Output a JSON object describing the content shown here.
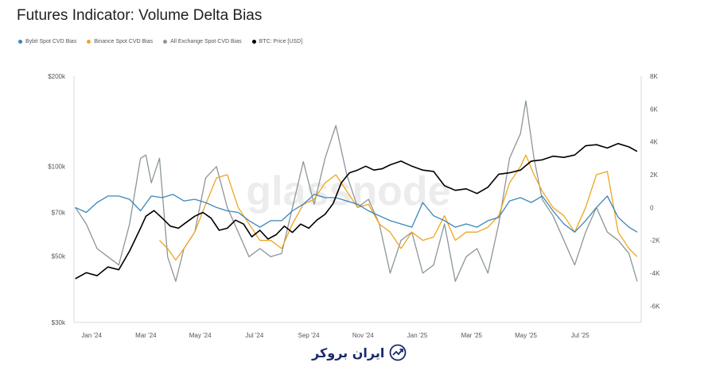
{
  "title": "Futures Indicator: Volume Delta Bias",
  "legend": [
    {
      "label": "Bybit Spot CVD Bias",
      "color": "#3b86b8"
    },
    {
      "label": "Binance Spot CVD Bias",
      "color": "#f0a51f"
    },
    {
      "label": "All Exchange Spot CVD Bias",
      "color": "#8c9699"
    },
    {
      "label": "BTC: Price [USD]",
      "color": "#000000"
    }
  ],
  "watermark": "glassnode",
  "logo_text": "ایران بروکر",
  "chart_data": {
    "type": "line",
    "title": "Futures Indicator: Volume Delta Bias",
    "x_ticks": [
      "Jan '24",
      "Mar '24",
      "May '24",
      "Jul '24",
      "Sep '24",
      "Nov '24",
      "Jan '25",
      "Mar '25",
      "May '25",
      "Jul '25"
    ],
    "x_tick_months": [
      1,
      3,
      5,
      7,
      9,
      11,
      13,
      15,
      17,
      19
    ],
    "x_range_months": [
      0.35,
      21.25
    ],
    "y_left_label": "BTC: Price [USD]",
    "y_left_scale": "log",
    "y_left_range": [
      30000,
      200000
    ],
    "y_left_ticks": [
      "$30k",
      "$50k",
      "$70k",
      "$100k",
      "$200k"
    ],
    "y_left_tick_values": [
      30000,
      50000,
      70000,
      100000,
      200000
    ],
    "y_right_range": [
      -7000,
      8000
    ],
    "y_right_ticks": [
      "8K",
      "6K",
      "4K",
      "2K",
      "0",
      "-2K",
      "-4K",
      "-6K"
    ],
    "y_right_tick_values": [
      8000,
      6000,
      4000,
      2000,
      0,
      -2000,
      -4000,
      -6000
    ],
    "series": [
      {
        "name": "All Exchange Spot CVD Bias",
        "axis": "right",
        "color": "#8c9699",
        "x": [
          0.4,
          0.8,
          1.2,
          1.6,
          2.0,
          2.4,
          2.8,
          3.0,
          3.2,
          3.5,
          3.8,
          4.1,
          4.4,
          4.8,
          5.2,
          5.6,
          6.0,
          6.4,
          6.8,
          7.2,
          7.6,
          8.0,
          8.4,
          8.8,
          9.2,
          9.6,
          10.0,
          10.4,
          10.8,
          11.2,
          11.6,
          12.0,
          12.4,
          12.8,
          13.2,
          13.6,
          14.0,
          14.4,
          14.8,
          15.2,
          15.6,
          16.0,
          16.4,
          16.8,
          17.0,
          17.3,
          17.6,
          18.0,
          18.4,
          18.8,
          19.2,
          19.6,
          20.0,
          20.4,
          20.8,
          21.1
        ],
        "y": [
          0,
          -1000,
          -2500,
          -3000,
          -3500,
          -1000,
          3000,
          3200,
          1500,
          3000,
          -3000,
          -4500,
          -2500,
          -1500,
          1800,
          2500,
          0,
          -1500,
          -3000,
          -2500,
          -3000,
          -2800,
          0,
          2800,
          200,
          3000,
          5000,
          2000,
          0,
          500,
          -1000,
          -4000,
          -2000,
          -1500,
          -4000,
          -3500,
          -1000,
          -4500,
          -3000,
          -2500,
          -4000,
          -1000,
          3000,
          4500,
          6500,
          3000,
          500,
          -500,
          -2000,
          -3500,
          -1500,
          0,
          -1500,
          -2000,
          -2800,
          -4500
        ]
      },
      {
        "name": "Binance Spot CVD Bias",
        "axis": "right",
        "color": "#f0a51f",
        "x": [
          3.5,
          3.8,
          4.1,
          4.4,
          4.8,
          5.2,
          5.6,
          6.0,
          6.4,
          6.8,
          7.2,
          7.6,
          8.0,
          8.4,
          8.8,
          9.2,
          9.6,
          10.0,
          10.4,
          10.8,
          11.2,
          11.6,
          12.0,
          12.4,
          12.8,
          13.2,
          13.6,
          14.0,
          14.4,
          14.8,
          15.2,
          15.6,
          16.0,
          16.4,
          16.8,
          17.0,
          17.3,
          17.6,
          18.0,
          18.4,
          18.8,
          19.2,
          19.6,
          20.0,
          20.4,
          20.8,
          21.1
        ],
        "y": [
          -2000,
          -2500,
          -3200,
          -2500,
          -1500,
          200,
          1800,
          2000,
          0,
          -1000,
          -2000,
          -2000,
          -2500,
          -1000,
          200,
          500,
          1500,
          2000,
          1000,
          0,
          200,
          -1000,
          -1500,
          -2500,
          -1500,
          -2000,
          -1800,
          -500,
          -2000,
          -1500,
          -1500,
          -1200,
          -500,
          1500,
          2500,
          3200,
          2000,
          1000,
          0,
          -500,
          -1500,
          0,
          2000,
          2200,
          -1500,
          -2500,
          -3000
        ]
      },
      {
        "name": "Bybit Spot CVD Bias",
        "axis": "right",
        "color": "#3b86b8",
        "x": [
          0.4,
          0.8,
          1.2,
          1.6,
          2.0,
          2.4,
          2.8,
          3.2,
          3.6,
          4.0,
          4.4,
          4.8,
          5.2,
          5.6,
          6.0,
          6.4,
          6.8,
          7.2,
          7.6,
          8.0,
          8.4,
          8.8,
          9.2,
          9.6,
          10.0,
          10.4,
          10.8,
          11.2,
          11.6,
          12.0,
          12.4,
          12.8,
          13.2,
          13.6,
          14.0,
          14.4,
          14.8,
          15.2,
          15.6,
          16.0,
          16.4,
          16.8,
          17.2,
          17.6,
          18.0,
          18.4,
          18.8,
          19.2,
          19.6,
          20.0,
          20.4,
          20.8,
          21.1
        ],
        "y": [
          0,
          -300,
          300,
          700,
          700,
          500,
          -200,
          700,
          600,
          800,
          400,
          500,
          300,
          0,
          -200,
          -300,
          -800,
          -1200,
          -800,
          -800,
          -200,
          200,
          800,
          600,
          600,
          400,
          200,
          -200,
          -500,
          -800,
          -1000,
          -1200,
          300,
          -500,
          -800,
          -1200,
          -1000,
          -1200,
          -800,
          -600,
          400,
          600,
          300,
          700,
          -200,
          -1000,
          -1500,
          -800,
          0,
          700,
          -600,
          -1200,
          -1500
        ]
      },
      {
        "name": "BTC: Price [USD]",
        "axis": "left",
        "color": "#000000",
        "x": [
          0.4,
          0.8,
          1.2,
          1.6,
          2.0,
          2.4,
          2.8,
          3.0,
          3.3,
          3.6,
          3.9,
          4.2,
          4.5,
          4.8,
          5.1,
          5.4,
          5.7,
          6.0,
          6.3,
          6.6,
          6.9,
          7.2,
          7.5,
          7.8,
          8.1,
          8.4,
          8.7,
          9.0,
          9.3,
          9.6,
          9.9,
          10.2,
          10.5,
          10.8,
          11.1,
          11.4,
          11.7,
          12.0,
          12.4,
          12.8,
          13.2,
          13.6,
          14.0,
          14.4,
          14.8,
          15.2,
          15.6,
          16.0,
          16.4,
          16.8,
          17.2,
          17.6,
          18.0,
          18.4,
          18.8,
          19.2,
          19.6,
          20.0,
          20.4,
          20.8,
          21.1
        ],
        "y": [
          42000,
          44000,
          43000,
          46000,
          45000,
          52000,
          62000,
          68000,
          71000,
          67000,
          63000,
          62000,
          65000,
          68000,
          70000,
          67000,
          61000,
          62000,
          66000,
          64000,
          58000,
          61000,
          57000,
          59000,
          63000,
          60000,
          64000,
          62000,
          66000,
          69000,
          75000,
          88000,
          95000,
          97000,
          100000,
          97000,
          98000,
          101000,
          104000,
          100000,
          97000,
          96000,
          86000,
          83000,
          84000,
          81000,
          85000,
          94000,
          95000,
          97000,
          104000,
          105000,
          108000,
          107000,
          109000,
          117000,
          118000,
          115000,
          119000,
          116000,
          112000
        ]
      }
    ]
  }
}
